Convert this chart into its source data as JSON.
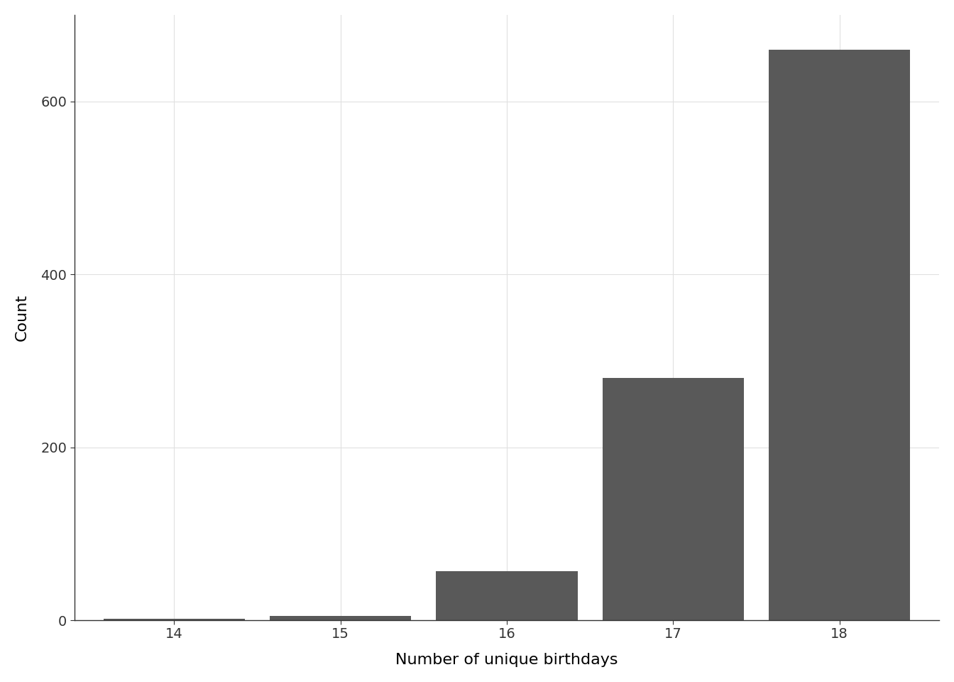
{
  "categories": [
    14,
    15,
    16,
    17,
    18
  ],
  "values": [
    2,
    5,
    57,
    280,
    660
  ],
  "bar_color": "#595959",
  "xlabel": "Number of unique birthdays",
  "ylabel": "Count",
  "ylim": [
    0,
    700
  ],
  "yticks": [
    0,
    200,
    400,
    600
  ],
  "background_color": "#ffffff",
  "panel_background": "#ffffff",
  "grid_color": "#e0e0e0",
  "axis_label_fontsize": 16,
  "tick_fontsize": 14,
  "bar_width": 0.85
}
